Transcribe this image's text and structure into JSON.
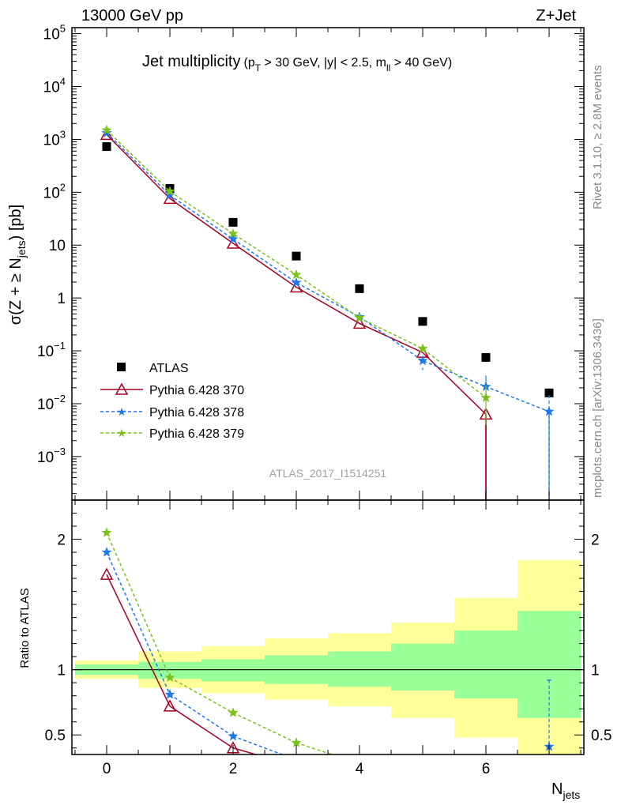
{
  "header": {
    "left": "13000 GeV pp",
    "right": "Z+Jet"
  },
  "side_labels": {
    "rivet": "Rivet 3.1.10, ≥ 2.8M events",
    "mcplots": "mcplots.cern.ch [arXiv:1306.3436]"
  },
  "analysis_label": "ATLAS_2017_I1514251",
  "colors": {
    "atlas": "#000000",
    "py370": "#a50021",
    "py378": "#1f77e8",
    "py379": "#7ac21b",
    "band_inner": "#99ff99",
    "band_outer": "#ffff99"
  },
  "chart_data": [
    {
      "type": "line",
      "title_main": "Jet multiplicity",
      "title_cut": {
        "pt_a": "(p",
        "pt_sub": "T",
        "pt_b": " > 30 GeV, |y| < 2.5, m",
        "m_sub": "ll",
        "m_b": " > 40 GeV)"
      },
      "ylabel": {
        "a": "σ(Z + ≥ N",
        "sub": "jets",
        "b": ") [pb]"
      },
      "xlabel": {
        "a": "N",
        "sub": "jets"
      },
      "yscale": "log",
      "xlim": [
        -0.55,
        7.55
      ],
      "ylim": [
        0.00015,
        130000
      ],
      "y_ticks": [
        {
          "v": 100000,
          "b": "10",
          "e": "5"
        },
        {
          "v": 10000,
          "b": "10",
          "e": "4"
        },
        {
          "v": 1000,
          "b": "10",
          "e": "3"
        },
        {
          "v": 100,
          "b": "10",
          "e": "2"
        },
        {
          "v": 10,
          "b": "10",
          "e": ""
        },
        {
          "v": 1,
          "b": "1",
          "e": ""
        },
        {
          "v": 0.1,
          "b": "10",
          "e": "−1"
        },
        {
          "v": 0.01,
          "b": "10",
          "e": "−2"
        },
        {
          "v": 0.001,
          "b": "10",
          "e": "−3"
        }
      ],
      "legend_position": "bottom-left",
      "series": [
        {
          "name": "ATLAS",
          "style": "data",
          "x": [
            0,
            1,
            2,
            3,
            4,
            5,
            6,
            7
          ],
          "y": [
            730,
            118,
            27,
            6.2,
            1.5,
            0.36,
            0.075,
            0.016
          ]
        },
        {
          "name": "Pythia 6.428 370",
          "style": "solid",
          "marker": "triangle",
          "x": [
            0,
            1,
            2,
            3,
            4,
            5,
            6,
            6
          ],
          "y": [
            1230,
            76,
            10.8,
            1.6,
            0.33,
            0.093,
            0.0063,
            1e-05
          ]
        },
        {
          "name": "Pythia 6.428 378",
          "style": "dashed",
          "marker": "star",
          "x": [
            0,
            1,
            2,
            3,
            4,
            5,
            6,
            7,
            7
          ],
          "y": [
            1330,
            88,
            13,
            1.95,
            0.44,
            0.065,
            0.021,
            0.0071,
            1e-05
          ]
        },
        {
          "name": "Pythia 6.428 379",
          "style": "dashed",
          "marker": "star",
          "x": [
            0,
            1,
            2,
            3,
            4,
            5,
            6
          ],
          "y": [
            1500,
            104,
            16.5,
            2.75,
            0.42,
            0.11,
            0.013
          ]
        }
      ]
    },
    {
      "type": "line",
      "ylabel": "Ratio to ATLAS",
      "xlim": [
        -0.55,
        7.55
      ],
      "ylim": [
        0.35,
        2.3
      ],
      "y_ticks": [
        {
          "v": 2,
          "label": "2"
        },
        {
          "v": 1,
          "label": "1"
        },
        {
          "v": 0.5,
          "label": "0.5"
        }
      ],
      "x_ticks": [
        {
          "v": 0,
          "label": "0"
        },
        {
          "v": 2,
          "label": "2"
        },
        {
          "v": 4,
          "label": "4"
        },
        {
          "v": 6,
          "label": "6"
        }
      ],
      "bands": [
        {
          "x0": -0.5,
          "x1": 0.5,
          "inner": [
            0.96,
            1.04
          ],
          "outer": [
            0.93,
            1.07
          ]
        },
        {
          "x0": 0.5,
          "x1": 1.5,
          "inner": [
            0.93,
            1.06
          ],
          "outer": [
            0.86,
            1.14
          ]
        },
        {
          "x0": 1.5,
          "x1": 2.5,
          "inner": [
            0.91,
            1.08
          ],
          "outer": [
            0.82,
            1.18
          ]
        },
        {
          "x0": 2.5,
          "x1": 3.5,
          "inner": [
            0.89,
            1.11
          ],
          "outer": [
            0.77,
            1.24
          ]
        },
        {
          "x0": 3.5,
          "x1": 4.5,
          "inner": [
            0.87,
            1.14
          ],
          "outer": [
            0.72,
            1.28
          ]
        },
        {
          "x0": 4.5,
          "x1": 5.5,
          "inner": [
            0.84,
            1.2
          ],
          "outer": [
            0.63,
            1.36
          ]
        },
        {
          "x0": 5.5,
          "x1": 6.5,
          "inner": [
            0.78,
            1.3
          ],
          "outer": [
            0.48,
            1.55
          ]
        },
        {
          "x0": 6.5,
          "x1": 7.5,
          "inner": [
            0.63,
            1.45
          ],
          "outer": [
            0.35,
            1.84
          ]
        }
      ],
      "series": [
        {
          "name": "Pythia 6.428 370",
          "x": [
            0,
            1,
            2,
            3
          ],
          "y": [
            1.73,
            0.72,
            0.4,
            0.26
          ]
        },
        {
          "name": "Pythia 6.428 378",
          "x": [
            0,
            1,
            2,
            3,
            7
          ],
          "y": [
            1.9,
            0.81,
            0.49,
            0.31,
            0.41
          ]
        },
        {
          "name": "Pythia 6.428 379",
          "x": [
            0,
            1,
            2,
            3,
            4
          ],
          "y": [
            2.05,
            0.94,
            0.67,
            0.44,
            0.28
          ]
        }
      ]
    }
  ]
}
